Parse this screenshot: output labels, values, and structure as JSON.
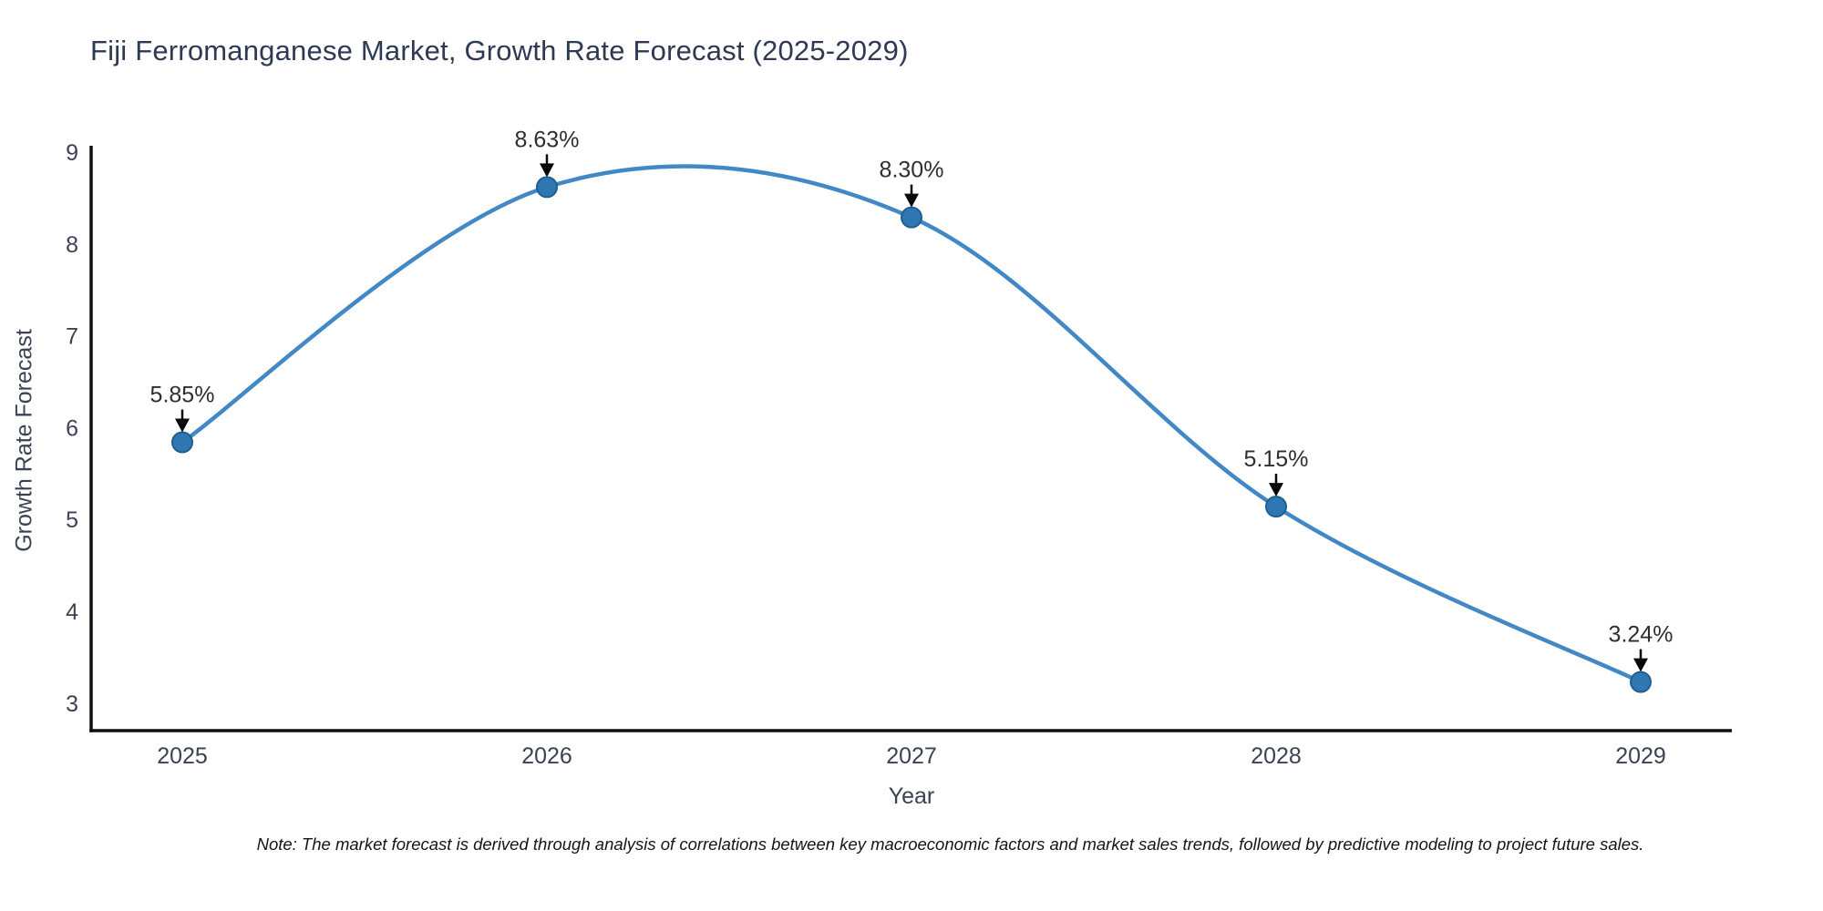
{
  "title": "Fiji Ferromanganese Market, Growth Rate Forecast (2025-2029)",
  "note": "Note: The market forecast is derived through analysis of correlations between key macroeconomic factors and market sales trends, followed by predictive modeling to project future sales.",
  "chart_data": {
    "type": "line",
    "title": "Fiji Ferromanganese Market, Growth Rate Forecast (2025-2029)",
    "x": [
      2025,
      2026,
      2027,
      2028,
      2029
    ],
    "values": [
      5.85,
      8.63,
      8.3,
      5.15,
      3.24
    ],
    "point_labels": [
      "5.85%",
      "8.63%",
      "8.30%",
      "5.15%",
      "3.24%"
    ],
    "xlabel": "Year",
    "ylabel": "Growth Rate Forecast",
    "xticks": [
      "2025",
      "2026",
      "2027",
      "2028",
      "2029"
    ],
    "yticks": [
      3,
      4,
      5,
      6,
      7,
      8,
      9
    ],
    "xlim": [
      2024.75,
      2029.25
    ],
    "ylim": [
      2.71,
      9.08
    ],
    "grid": false,
    "legend": null,
    "smooth": true,
    "colors": {
      "line": "#4288c5",
      "marker_fill": "#2f77b2",
      "marker_edge": "#20608f",
      "axis": "#0f0f0f",
      "tick_label": "#3a4254",
      "annotation_text": "#2e2e2e",
      "arrow": "#0a0a0a",
      "title": "#2e3a54"
    }
  }
}
